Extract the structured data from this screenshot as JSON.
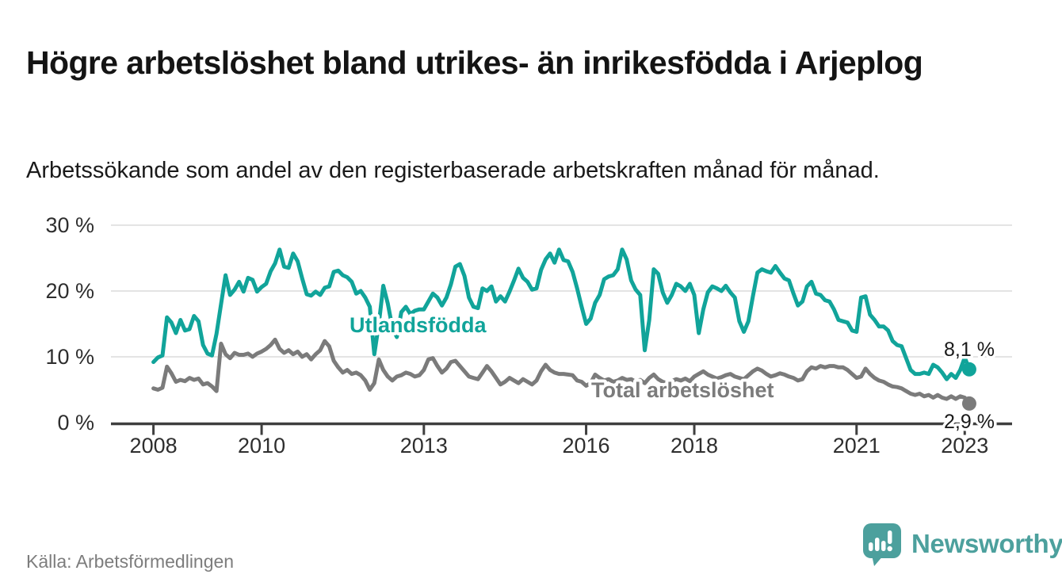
{
  "header": {
    "title": "Högre arbetslöshet bland utrikes- än inrikesfödda i Arjeplog",
    "subtitle": "Arbetssökande som andel av den registerbaserade arbetskraften månad för månad."
  },
  "footer": {
    "source": "Källa: Arbetsförmedlingen",
    "brand": "Newsworthy",
    "logo_icon": "newsworthy-speech-bubble-bar-chart-icon"
  },
  "colors": {
    "series_foreign_born": "#11a49a",
    "series_total": "#7b7b7b",
    "brand_teal": "#4ca09d",
    "axis": "#3f3f3f",
    "grid": "#dcdcdc",
    "end_label_text": "#1a1a1a",
    "tick_text": "#2e2e2e"
  },
  "chart_data": {
    "type": "line",
    "title": "Högre arbetslöshet bland utrikes- än inrikesfödda i Arjeplog",
    "subtitle": "Arbetssökande som andel av den registerbaserade arbetskraften månad för månad.",
    "unit": "%",
    "frequency": "monthly",
    "x_start": "2008-01",
    "x_end": "2023-02",
    "x_tick_labels": [
      "2008",
      "2010",
      "2013",
      "2016",
      "2018",
      "2021",
      "2023"
    ],
    "x_tick_month_indices": [
      0,
      24,
      60,
      96,
      120,
      156,
      180
    ],
    "y_axis": {
      "ticks": [
        0,
        10,
        20,
        30
      ],
      "tick_labels": [
        "0 %",
        "10 %",
        "20 %",
        "30 %"
      ],
      "range": [
        0,
        31
      ],
      "grid": true
    },
    "legend_position": "inline-labels",
    "series": [
      {
        "name": "Utlandsfödda",
        "slug": "utlandsfodda",
        "color": "#11a49a",
        "end_label": "8,1 %",
        "end_value": 8.1,
        "values": [
          9.2,
          9.9,
          10.2,
          16.0,
          15.2,
          13.6,
          15.6,
          14.0,
          14.2,
          16.2,
          15.4,
          11.8,
          10.5,
          10.2,
          13.5,
          18.0,
          22.4,
          19.4,
          20.2,
          21.4,
          19.9,
          22.0,
          21.7,
          19.9,
          20.6,
          21.1,
          23.0,
          24.2,
          26.3,
          23.7,
          23.5,
          25.7,
          24.5,
          21.9,
          19.5,
          19.3,
          19.9,
          19.4,
          20.5,
          20.7,
          22.9,
          23.1,
          22.4,
          22.1,
          21.4,
          19.6,
          20.0,
          19.0,
          17.6,
          10.4,
          15.0,
          20.8,
          18.1,
          14.5,
          13.0,
          16.8,
          17.6,
          16.5,
          17.0,
          17.2,
          17.2,
          18.4,
          19.6,
          19.0,
          17.8,
          19.0,
          21.0,
          23.7,
          24.1,
          22.3,
          19.0,
          17.6,
          17.4,
          20.4,
          20.0,
          20.7,
          18.4,
          19.2,
          18.4,
          19.9,
          21.6,
          23.4,
          22.0,
          21.4,
          20.2,
          20.4,
          23.2,
          24.8,
          25.7,
          24.3,
          26.3,
          24.7,
          24.5,
          22.9,
          20.4,
          17.6,
          15.0,
          15.8,
          18.2,
          19.4,
          21.8,
          22.2,
          22.4,
          23.3,
          26.3,
          24.8,
          21.6,
          20.2,
          19.4,
          11.0,
          15.6,
          23.3,
          22.6,
          19.8,
          18.2,
          19.4,
          21.1,
          20.7,
          20.0,
          21.1,
          19.4,
          13.6,
          17.2,
          19.8,
          20.7,
          20.4,
          20.0,
          20.8,
          19.8,
          19.0,
          15.4,
          13.8,
          15.4,
          19.2,
          22.8,
          23.3,
          23.0,
          22.8,
          23.8,
          22.8,
          21.9,
          21.6,
          19.6,
          17.8,
          18.4,
          20.7,
          21.4,
          19.6,
          19.4,
          18.6,
          18.4,
          17.2,
          15.6,
          15.4,
          15.2,
          14.0,
          13.8,
          19.0,
          19.2,
          16.4,
          15.6,
          14.6,
          14.6,
          14.0,
          12.4,
          11.8,
          11.6,
          9.8,
          8.0,
          7.4,
          7.4,
          7.6,
          7.4,
          8.8,
          8.4,
          7.6,
          6.6,
          7.4,
          6.8,
          8.0,
          9.9,
          8.1
        ]
      },
      {
        "name": "Total arbetslöshet",
        "slug": "total-arbetsloshet",
        "color": "#7b7b7b",
        "end_label": "2,9 %",
        "end_value": 2.9,
        "values": [
          5.2,
          5.0,
          5.3,
          8.5,
          7.5,
          6.2,
          6.5,
          6.3,
          6.8,
          6.5,
          6.7,
          5.8,
          6.0,
          5.5,
          4.8,
          12.0,
          10.4,
          9.8,
          10.6,
          10.3,
          10.3,
          10.5,
          10.0,
          10.5,
          10.8,
          11.2,
          11.8,
          12.6,
          11.2,
          10.6,
          11.0,
          10.4,
          10.8,
          10.0,
          10.4,
          9.6,
          10.4,
          11.0,
          12.4,
          11.6,
          9.4,
          8.4,
          7.6,
          8.0,
          7.4,
          7.6,
          7.2,
          6.4,
          5.0,
          6.0,
          9.6,
          8.0,
          7.0,
          6.4,
          7.0,
          7.2,
          7.6,
          7.4,
          7.0,
          7.2,
          8.0,
          9.6,
          9.8,
          8.6,
          7.6,
          8.2,
          9.2,
          9.4,
          8.6,
          7.8,
          7.0,
          6.8,
          6.6,
          7.6,
          8.6,
          7.8,
          6.8,
          5.8,
          6.2,
          6.8,
          6.4,
          6.0,
          6.6,
          6.2,
          5.8,
          6.4,
          7.8,
          8.8,
          8.0,
          7.6,
          7.4,
          7.4,
          7.3,
          7.2,
          6.4,
          6.2,
          5.6,
          6.0,
          7.3,
          6.8,
          6.4,
          6.6,
          6.2,
          6.4,
          6.8,
          6.5,
          6.6,
          6.2,
          6.5,
          6.0,
          6.8,
          7.3,
          6.6,
          6.2,
          6.0,
          6.3,
          6.6,
          6.4,
          6.7,
          6.3,
          7.0,
          7.4,
          7.8,
          7.3,
          7.0,
          6.7,
          6.9,
          7.2,
          7.4,
          7.0,
          6.8,
          6.6,
          7.2,
          7.8,
          8.2,
          7.9,
          7.4,
          7.0,
          7.2,
          7.5,
          7.3,
          7.0,
          6.8,
          6.4,
          6.6,
          7.8,
          8.4,
          8.2,
          8.6,
          8.4,
          8.6,
          8.6,
          8.4,
          8.4,
          8.0,
          7.4,
          6.8,
          7.0,
          8.2,
          7.4,
          6.8,
          6.4,
          6.2,
          5.8,
          5.5,
          5.4,
          5.2,
          4.8,
          4.4,
          4.2,
          4.4,
          4.0,
          4.2,
          3.8,
          4.2,
          3.8,
          3.6,
          4.0,
          3.6,
          4.0,
          3.8,
          2.9
        ]
      }
    ]
  }
}
